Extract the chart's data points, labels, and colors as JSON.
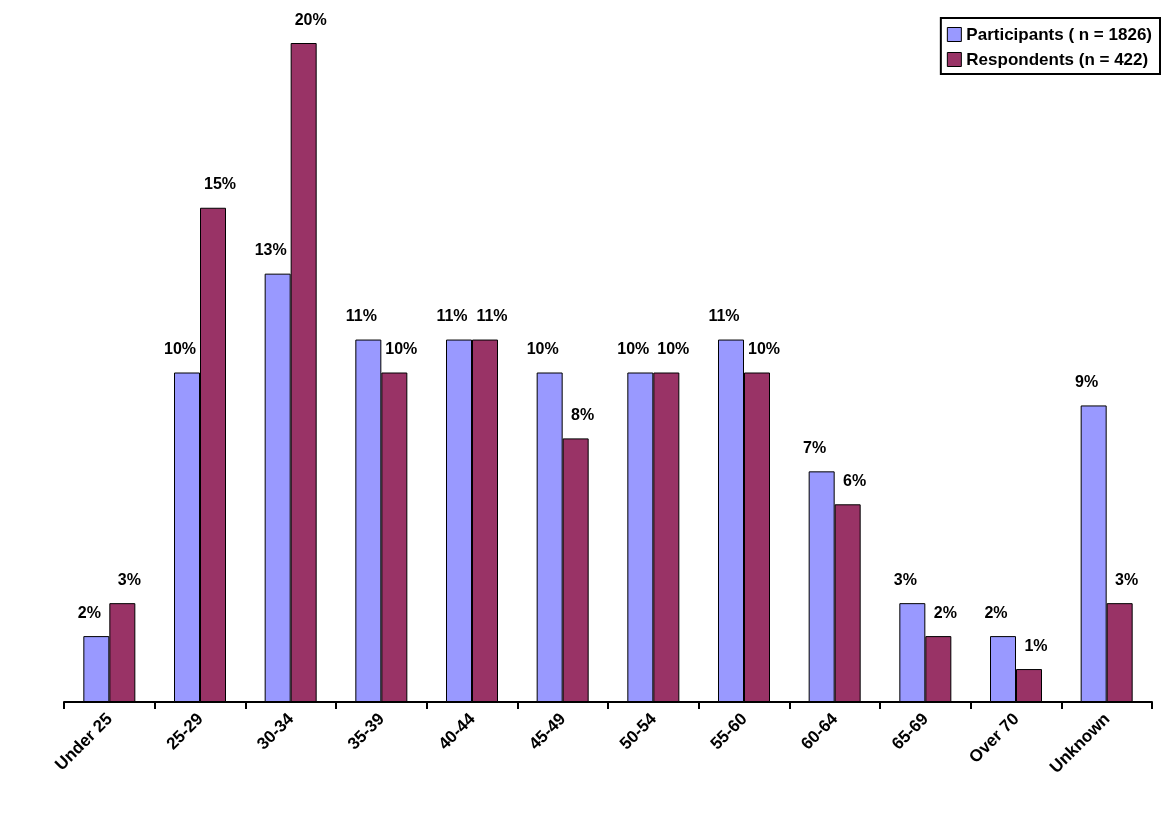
{
  "chart_data": {
    "type": "bar",
    "categories": [
      "Under 25",
      "25-29",
      "30-34",
      "35-39",
      "40-44",
      "45-49",
      "50-54",
      "55-60",
      "60-64",
      "65-69",
      "Over 70",
      "Unknown"
    ],
    "series": [
      {
        "name": "Participants ( n = 1826)",
        "color": "#9999ff",
        "values": [
          2,
          10,
          13,
          11,
          11,
          10,
          10,
          11,
          7,
          3,
          2,
          9
        ],
        "value_labels": [
          "2%",
          "10%",
          "13%",
          "11%",
          "11%",
          "10%",
          "10%",
          "11%",
          "7%",
          "3%",
          "2%",
          "9%"
        ]
      },
      {
        "name": "Respondents (n = 422)",
        "color": "#993366",
        "values": [
          3,
          15,
          20,
          10,
          11,
          8,
          10,
          10,
          6,
          2,
          1,
          3
        ],
        "value_labels": [
          "3%",
          "15%",
          "20%",
          "10%",
          "11%",
          "8%",
          "10%",
          "10%",
          "6%",
          "2%",
          "1%",
          "3%"
        ]
      }
    ],
    "legend": "top right",
    "grid": false
  }
}
